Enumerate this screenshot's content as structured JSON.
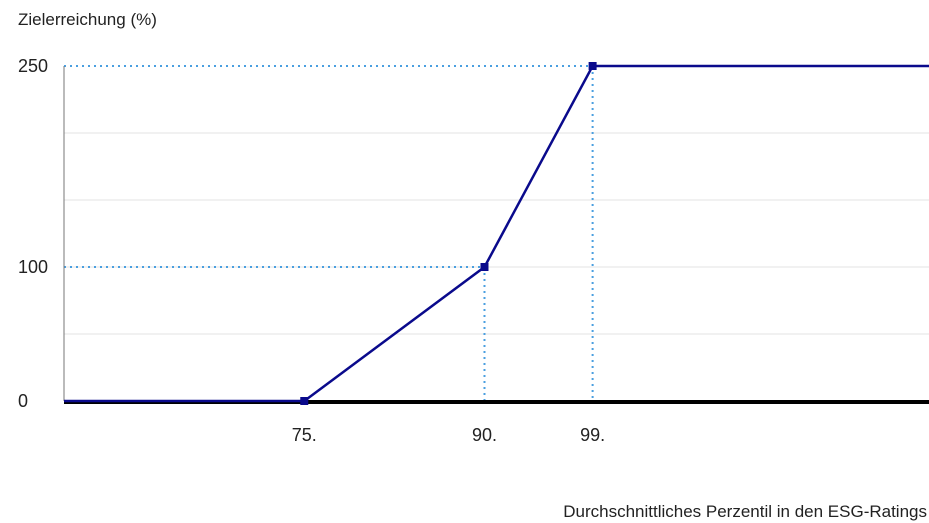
{
  "chart_data": {
    "type": "line",
    "title": "Zielerreichung (%)",
    "xlabel": "Durchschnittliches Perzentil in den ESG-Ratings",
    "ylabel": "",
    "x_tick_labels": [
      "75.",
      "90.",
      "99."
    ],
    "x_tick_values": [
      75,
      90,
      99
    ],
    "y_tick_labels": [
      "0",
      "100",
      "250"
    ],
    "y_tick_values": [
      0,
      100,
      250
    ],
    "xlim": [
      55,
      127
    ],
    "ylim": [
      0,
      250
    ],
    "grid": true,
    "series": [
      {
        "x": [
          55,
          75,
          90,
          99,
          127
        ],
        "y": [
          0,
          0,
          100,
          250,
          250
        ],
        "markers": [
          75,
          90,
          99
        ]
      }
    ],
    "reference_lines": [
      {
        "x": 90,
        "y": 100
      },
      {
        "x": 99,
        "y": 250
      }
    ],
    "colors": {
      "line": "#0a0a8c",
      "reference": "#4a9fe0",
      "grid": "#e3e3e3",
      "axis": "#000000"
    }
  }
}
